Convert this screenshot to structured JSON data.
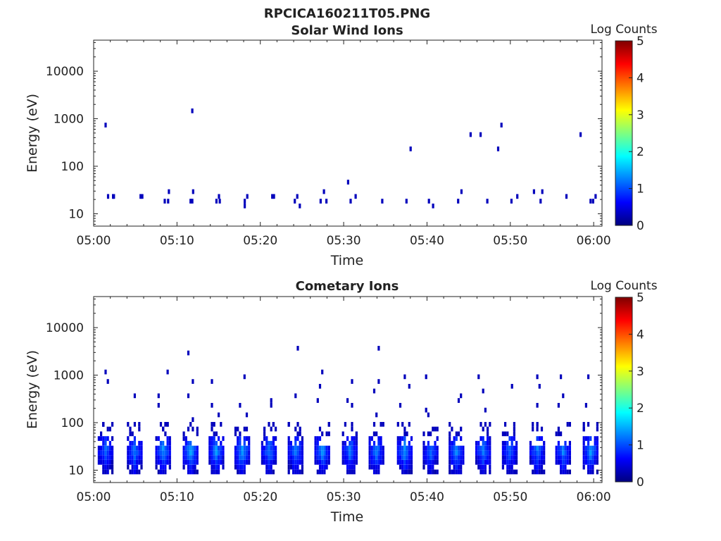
{
  "figure_title": "RPCICA160211T05.PNG",
  "colormap_stops": [
    "#00007f",
    "#0000ff",
    "#007fff",
    "#00ffff",
    "#7fff7f",
    "#ffff00",
    "#ff7f00",
    "#ff0000",
    "#7f0000"
  ],
  "chart_data": [
    {
      "type": "heatmap",
      "title": "Solar Wind Ions",
      "xlabel": "Time",
      "ylabel": "Energy (eV)",
      "xlim": [
        "05:00",
        "06:01"
      ],
      "xticks": [
        "05:00",
        "05:10",
        "05:20",
        "05:30",
        "05:40",
        "05:50",
        "06:00"
      ],
      "ylim": [
        5.5,
        45000
      ],
      "y_scale": "log",
      "yticks": [
        10,
        100,
        1000,
        10000
      ],
      "ytick_labels": [
        "10",
        "100",
        "1000",
        "10000"
      ],
      "colorbar": {
        "label": "Log Counts",
        "range": [
          0,
          5
        ],
        "ticks": [
          "0",
          "1",
          "2",
          "3",
          "4",
          "5"
        ]
      },
      "cells": [
        {
          "t": "05:01.3",
          "e": 750,
          "v": 0.3
        },
        {
          "t": "05:01.6",
          "e": 25,
          "v": 0.3
        },
        {
          "t": "05:02.2",
          "e": 25,
          "v": 0.3
        },
        {
          "t": "05:02.3",
          "e": 25,
          "v": 0.3
        },
        {
          "t": "05:05.5",
          "e": 25,
          "v": 0.3
        },
        {
          "t": "05:05.7",
          "e": 25,
          "v": 0.3
        },
        {
          "t": "05:08.4",
          "e": 20,
          "v": 0.3
        },
        {
          "t": "05:08.8",
          "e": 20,
          "v": 0.3
        },
        {
          "t": "05:08.9",
          "e": 30,
          "v": 0.3
        },
        {
          "t": "05:11.5",
          "e": 20,
          "v": 0.3
        },
        {
          "t": "05:11.7",
          "e": 20,
          "v": 0.3
        },
        {
          "t": "05:11.8",
          "e": 30,
          "v": 0.3
        },
        {
          "t": "05:11.7",
          "e": 1350,
          "v": 0.3
        },
        {
          "t": "05:14.6",
          "e": 20,
          "v": 0.3
        },
        {
          "t": "05:14.9",
          "e": 25,
          "v": 0.3
        },
        {
          "t": "05:15.0",
          "e": 20,
          "v": 0.3
        },
        {
          "t": "05:18.0",
          "e": 15,
          "v": 0.3
        },
        {
          "t": "05:18.0",
          "e": 20,
          "v": 0.3
        },
        {
          "t": "05:18.3",
          "e": 25,
          "v": 0.3
        },
        {
          "t": "05:21.3",
          "e": 25,
          "v": 0.3
        },
        {
          "t": "05:21.5",
          "e": 25,
          "v": 0.3
        },
        {
          "t": "05:24.0",
          "e": 20,
          "v": 0.3
        },
        {
          "t": "05:24.3",
          "e": 25,
          "v": 0.3
        },
        {
          "t": "05:24.6",
          "e": 15,
          "v": 0.3
        },
        {
          "t": "05:27.1",
          "e": 20,
          "v": 0.3
        },
        {
          "t": "05:27.5",
          "e": 30,
          "v": 0.3
        },
        {
          "t": "05:27.8",
          "e": 20,
          "v": 0.3
        },
        {
          "t": "05:30.4",
          "e": 50,
          "v": 0.3
        },
        {
          "t": "05:30.7",
          "e": 20,
          "v": 0.3
        },
        {
          "t": "05:31.3",
          "e": 25,
          "v": 0.3
        },
        {
          "t": "05:34.5",
          "e": 20,
          "v": 0.3
        },
        {
          "t": "05:37.4",
          "e": 20,
          "v": 0.3
        },
        {
          "t": "05:37.9",
          "e": 230,
          "v": 0.3
        },
        {
          "t": "05:40.1",
          "e": 20,
          "v": 0.3
        },
        {
          "t": "05:40.6",
          "e": 15,
          "v": 0.3
        },
        {
          "t": "05:43.6",
          "e": 20,
          "v": 0.3
        },
        {
          "t": "05:44.0",
          "e": 30,
          "v": 0.3
        },
        {
          "t": "05:45.1",
          "e": 420,
          "v": 0.3
        },
        {
          "t": "05:46.3",
          "e": 420,
          "v": 0.3
        },
        {
          "t": "05:47.1",
          "e": 20,
          "v": 0.3
        },
        {
          "t": "05:48.4",
          "e": 230,
          "v": 0.3
        },
        {
          "t": "05:48.8",
          "e": 700,
          "v": 0.3
        },
        {
          "t": "05:50.0",
          "e": 20,
          "v": 0.3
        },
        {
          "t": "05:50.7",
          "e": 25,
          "v": 0.3
        },
        {
          "t": "05:52.7",
          "e": 30,
          "v": 0.3
        },
        {
          "t": "05:53.5",
          "e": 20,
          "v": 0.3
        },
        {
          "t": "05:53.7",
          "e": 30,
          "v": 0.3
        },
        {
          "t": "05:56.6",
          "e": 25,
          "v": 0.3
        },
        {
          "t": "05:58.3",
          "e": 500,
          "v": 0.3
        },
        {
          "t": "05:59.5",
          "e": 20,
          "v": 0.3
        },
        {
          "t": "05:59.8",
          "e": 20,
          "v": 0.3
        },
        {
          "t": "06:00.1",
          "e": 25,
          "v": 0.3
        }
      ]
    },
    {
      "type": "heatmap",
      "title": "Cometary Ions",
      "xlabel": "Time",
      "ylabel": "Energy (eV)",
      "xlim": [
        "05:00",
        "06:01"
      ],
      "xticks": [
        "05:00",
        "05:10",
        "05:20",
        "05:30",
        "05:40",
        "05:50",
        "06:00"
      ],
      "ylim": [
        5.5,
        45000
      ],
      "y_scale": "log",
      "yticks": [
        10,
        100,
        1000,
        10000
      ],
      "ytick_labels": [
        "10",
        "100",
        "1000",
        "10000"
      ],
      "colorbar": {
        "label": "Log Counts",
        "range": [
          0,
          5
        ],
        "ticks": [
          "0",
          "1",
          "2",
          "3",
          "4",
          "5"
        ]
      },
      "bursts": [
        {
          "t": "05:01.3",
          "peak": 1.2,
          "high": [
            1150,
            700,
            85,
            70
          ]
        },
        {
          "t": "05:04.8",
          "peak": 1.3,
          "high": [
            410,
            95,
            75
          ]
        },
        {
          "t": "05:08.2",
          "peak": 1.4,
          "high": [
            1200,
            350,
            230,
            90,
            70
          ]
        },
        {
          "t": "05:11.5",
          "peak": 1.5,
          "high": [
            2900,
            700,
            330,
            120,
            80
          ]
        },
        {
          "t": "05:14.6",
          "peak": 1.4,
          "high": [
            700,
            230,
            160,
            85
          ]
        },
        {
          "t": "05:17.7",
          "peak": 1.5,
          "high": [
            950,
            220,
            150,
            80
          ]
        },
        {
          "t": "05:20.9",
          "peak": 1.3,
          "high": [
            300,
            210,
            90,
            70
          ]
        },
        {
          "t": "05:24.1",
          "peak": 1.3,
          "high": [
            3500,
            400,
            85,
            60
          ]
        },
        {
          "t": "05:27.3",
          "peak": 1.4,
          "high": [
            1100,
            530,
            270,
            75
          ]
        },
        {
          "t": "05:30.6",
          "peak": 1.3,
          "high": [
            700,
            320,
            230,
            80
          ]
        },
        {
          "t": "05:33.8",
          "peak": 1.3,
          "high": [
            3500,
            700,
            500,
            160,
            85
          ]
        },
        {
          "t": "05:37.2",
          "peak": 1.4,
          "high": [
            950,
            550,
            260,
            90
          ]
        },
        {
          "t": "05:40.3",
          "peak": 1.2,
          "high": [
            950,
            180,
            140,
            70
          ]
        },
        {
          "t": "05:43.4",
          "peak": 1.4,
          "high": [
            400,
            280,
            80,
            65
          ]
        },
        {
          "t": "05:46.6",
          "peak": 1.3,
          "high": [
            900,
            500,
            200,
            85
          ]
        },
        {
          "t": "05:49.8",
          "peak": 1.2,
          "high": [
            580,
            70,
            60
          ]
        },
        {
          "t": "05:53.1",
          "peak": 1.3,
          "high": [
            900,
            550,
            250,
            90
          ]
        },
        {
          "t": "05:56.2",
          "peak": 1.3,
          "high": [
            950,
            400,
            220,
            80
          ]
        },
        {
          "t": "05:59.5",
          "peak": 1.4,
          "high": [
            1000,
            210,
            95
          ]
        }
      ]
    }
  ]
}
